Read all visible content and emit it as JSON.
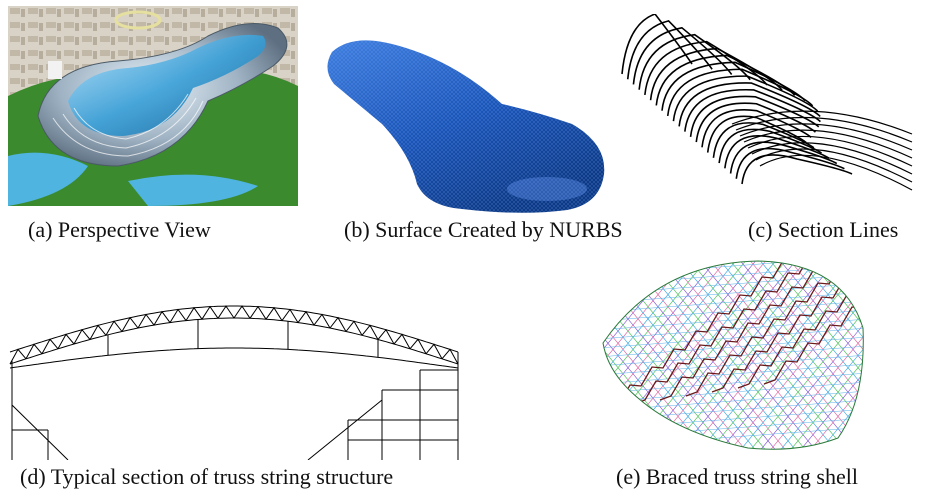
{
  "figure": {
    "panels": [
      {
        "id": "a",
        "caption": "(a) Perspective View"
      },
      {
        "id": "b",
        "caption": "(b) Surface Created by NURBS"
      },
      {
        "id": "c",
        "caption": "(c)  Section Lines"
      },
      {
        "id": "d",
        "caption": "(d) Typical section of truss string structure"
      },
      {
        "id": "e",
        "caption": "(e) Braced truss string shell"
      }
    ]
  },
  "colors": {
    "nurbs_surface": "#1a55b8",
    "grass": "#3b8a2e",
    "roof_glass": "#3aa0d8",
    "water": "#4fb4e0"
  }
}
